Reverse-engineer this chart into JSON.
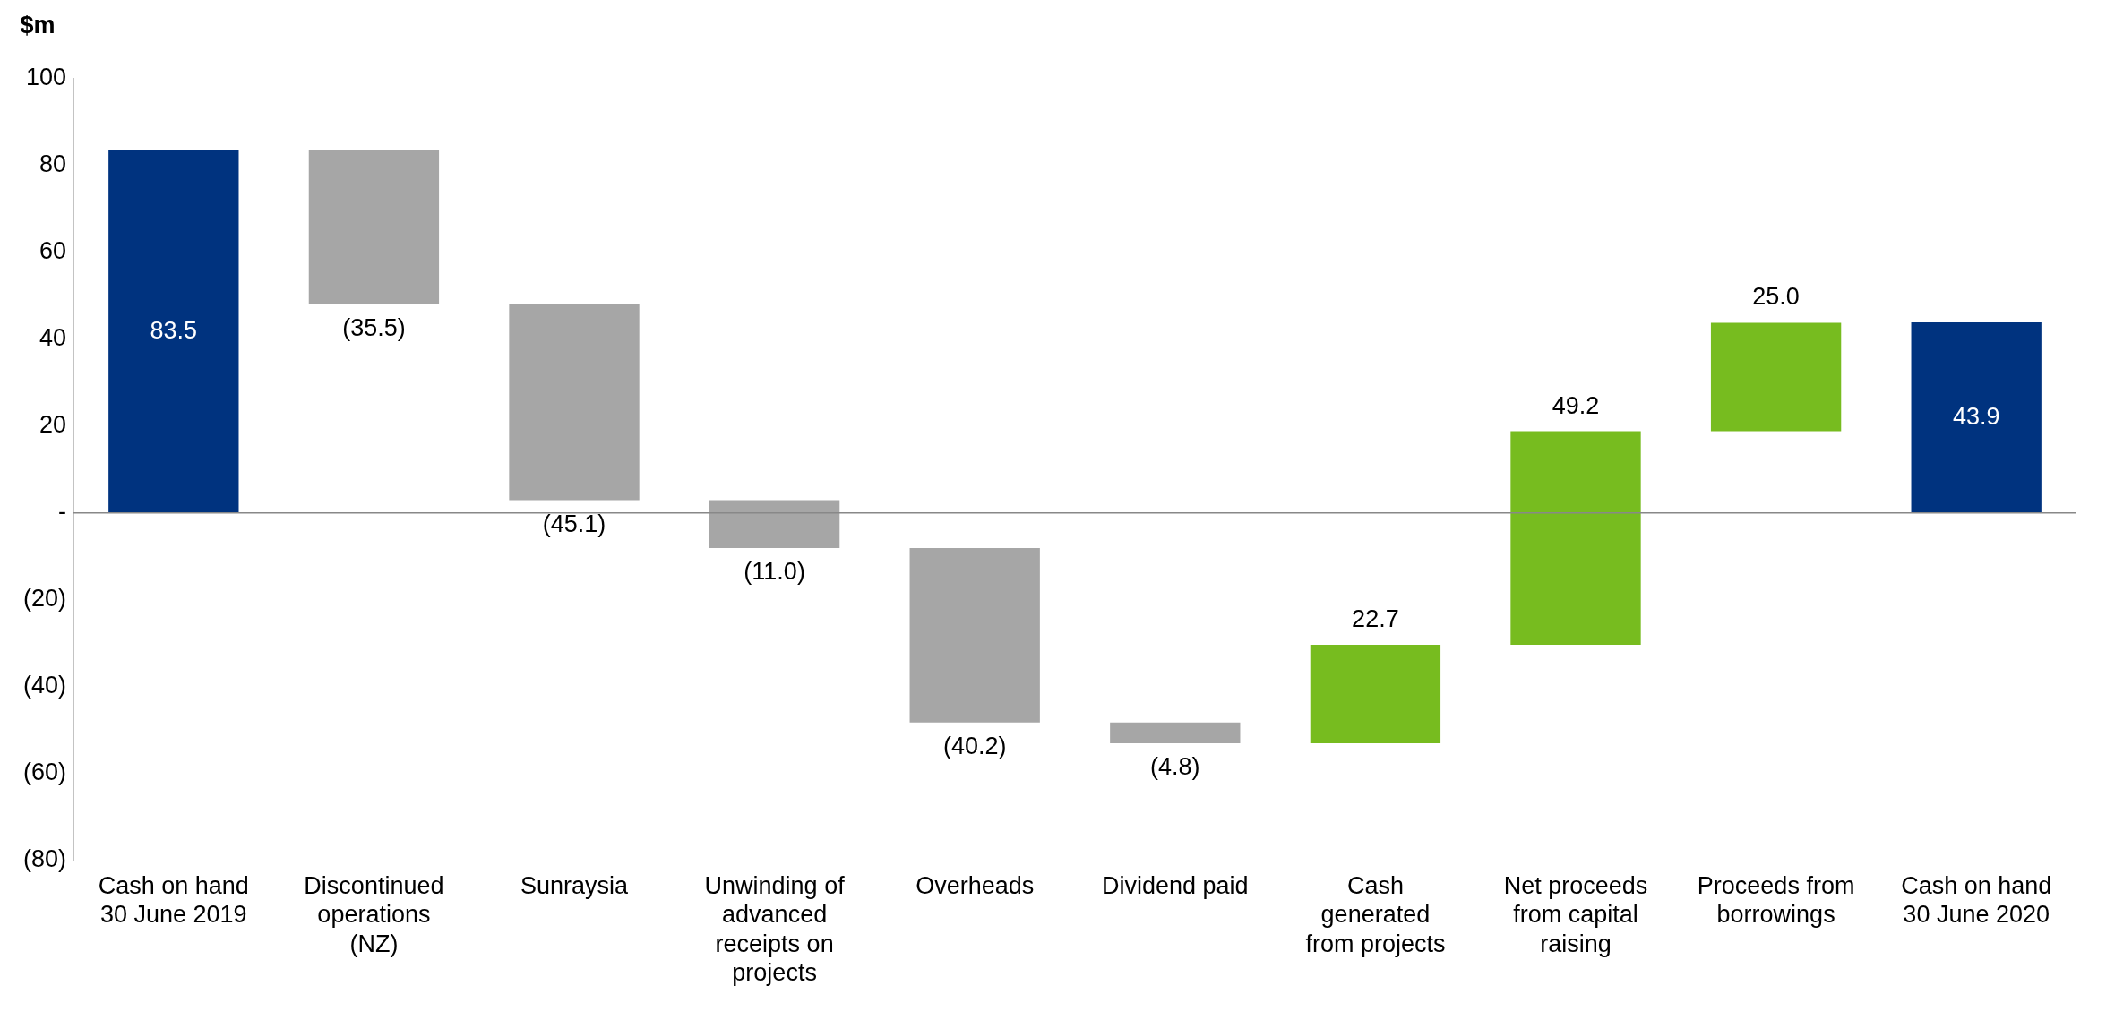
{
  "chart_data": {
    "type": "bar",
    "ylabel": "$m",
    "categories": [
      "Cash on hand 30 June 2019",
      "Discontinued operations (NZ)",
      "Sunraysia",
      "Unwinding of advanced receipts on projects",
      "Overheads",
      "Dividend paid",
      "Cash generated from projects",
      "Net proceeds from capital raising",
      "Proceeds from borrowings",
      "Cash on hand 30 June 2020"
    ],
    "values": [
      83.5,
      -35.5,
      -45.1,
      -11.0,
      -40.2,
      -4.8,
      22.7,
      49.2,
      25.0,
      43.9
    ],
    "base": [
      0,
      83.5,
      48.0,
      2.9,
      -8.1,
      -48.3,
      -53.1,
      -30.4,
      18.8,
      0
    ],
    "colors": [
      "#00337f",
      "#a6a6a6",
      "#a6a6a6",
      "#a6a6a6",
      "#a6a6a6",
      "#a6a6a6",
      "#77bc1f",
      "#77bc1f",
      "#77bc1f",
      "#00337f"
    ],
    "value_labels": [
      "83.5",
      "(35.5)",
      "(45.1)",
      "(11.0)",
      "(40.2)",
      "(4.8)",
      "22.7",
      "49.2",
      "25.0",
      "43.9"
    ],
    "ylim": [
      -80,
      100
    ],
    "yticks": [
      {
        "value": -80,
        "label": "(80)"
      },
      {
        "value": -60,
        "label": "(60)"
      },
      {
        "value": -40,
        "label": "(40)"
      },
      {
        "value": -20,
        "label": "(20)"
      },
      {
        "value": 0,
        "label": "-"
      },
      20,
      40,
      60,
      80,
      100
    ],
    "ref_lines": [
      {
        "axis": "y",
        "value": 0,
        "color": "#888888",
        "line_style": "solid"
      }
    ],
    "grid": false,
    "legend": false
  }
}
